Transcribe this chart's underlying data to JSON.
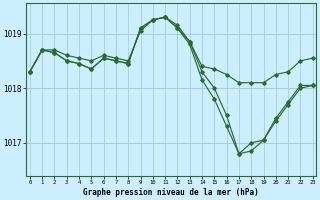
{
  "title": "Graphe pression niveau de la mer (hPa)",
  "background_color": "#cceeff",
  "grid_color": "#aaccdd",
  "line_color": "#2d6a2d",
  "x_ticks": [
    0,
    1,
    2,
    3,
    4,
    5,
    6,
    7,
    8,
    9,
    10,
    11,
    12,
    13,
    14,
    15,
    16,
    17,
    18,
    19,
    20,
    21,
    22,
    23
  ],
  "y_ticks": [
    1017,
    1018,
    1019
  ],
  "ylim": [
    1016.4,
    1019.55
  ],
  "xlim": [
    -0.3,
    23.3
  ],
  "series": [
    {
      "x": [
        0,
        1,
        2,
        3,
        4,
        5,
        6,
        7,
        8,
        9,
        10,
        11,
        12,
        13,
        14,
        15,
        16,
        17,
        18,
        19,
        20,
        21,
        22,
        23
      ],
      "y": [
        1018.3,
        1018.7,
        1018.7,
        1018.6,
        1018.55,
        1018.5,
        1018.6,
        1018.55,
        1018.5,
        1019.05,
        1019.25,
        1019.3,
        1019.15,
        1018.85,
        1018.4,
        1018.35,
        1018.25,
        1018.1,
        1018.1,
        1018.1,
        1018.25,
        1018.3,
        1018.5,
        1018.55
      ]
    },
    {
      "x": [
        0,
        1,
        2,
        3,
        4,
        5,
        6,
        7,
        8,
        9,
        10,
        11,
        12,
        13,
        14,
        15,
        16,
        17,
        18,
        19,
        20,
        21,
        22,
        23
      ],
      "y": [
        1018.3,
        1018.7,
        1018.65,
        1018.5,
        1018.45,
        1018.35,
        1018.55,
        1018.5,
        1018.45,
        1019.1,
        1019.25,
        1019.3,
        1019.1,
        1018.8,
        1018.15,
        1017.8,
        1017.3,
        1016.8,
        1016.85,
        1017.05,
        1017.4,
        1017.7,
        1018.0,
        1018.05
      ]
    },
    {
      "x": [
        0,
        1,
        2,
        3,
        4,
        5,
        6,
        7,
        8,
        9,
        10,
        11,
        12,
        13,
        14,
        15,
        16,
        17,
        18,
        19,
        20,
        21,
        22,
        23
      ],
      "y": [
        1018.3,
        1018.7,
        1018.65,
        1018.5,
        1018.45,
        1018.35,
        1018.55,
        1018.5,
        1018.45,
        1019.1,
        1019.25,
        1019.3,
        1019.1,
        1018.85,
        1018.3,
        1018.0,
        1017.5,
        1016.8,
        1017.0,
        1017.05,
        1017.45,
        1017.75,
        1018.05,
        1018.05
      ]
    }
  ]
}
